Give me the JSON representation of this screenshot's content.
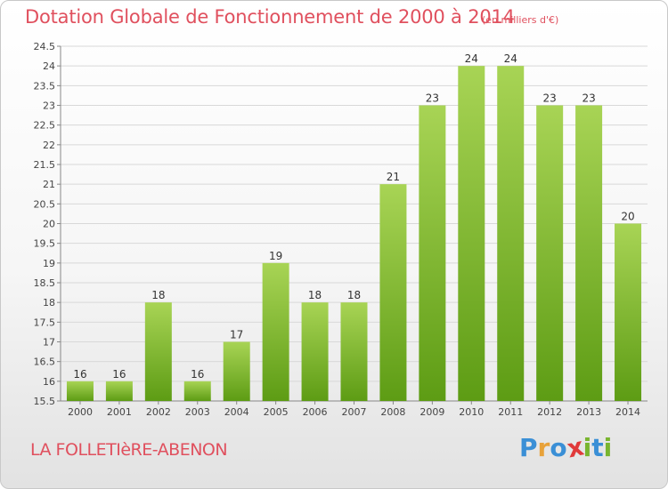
{
  "header": {
    "title": "Dotation Globale de Fonctionnement de 2000 à 2014",
    "units": "(en milliers d'€)"
  },
  "footer": {
    "commune": "LA FOLLETIèRE-ABENON",
    "logo": [
      "P",
      "r",
      "o",
      "x",
      "i",
      "t",
      "i"
    ]
  },
  "colors": {
    "title": "#e0505e",
    "bar_top": "#a8d455",
    "bar_bottom": "#5d9c14",
    "grid": "#d8d8d8",
    "logo": [
      "#3a8fd6",
      "#e8a23a",
      "#3a8fd6",
      "#e03a3a",
      "#79b52f",
      "#3a8fd6",
      "#79b52f"
    ]
  },
  "chart_data": {
    "type": "bar",
    "title": "Dotation Globale de Fonctionnement de 2000 à 2014",
    "xlabel": "",
    "ylabel": "",
    "categories": [
      "2000",
      "2001",
      "2002",
      "2003",
      "2004",
      "2005",
      "2006",
      "2007",
      "2008",
      "2009",
      "2010",
      "2011",
      "2012",
      "2013",
      "2014"
    ],
    "values": [
      16,
      16,
      18,
      16,
      17,
      19,
      18,
      18,
      21,
      23,
      24,
      24,
      23,
      23,
      20
    ],
    "ylim": [
      15.5,
      24.5
    ],
    "yticks": [
      "15.5",
      "16",
      "16.5",
      "17",
      "17.5",
      "18",
      "18.5",
      "19",
      "19.5",
      "20",
      "20.5",
      "21",
      "21.5",
      "22",
      "22.5",
      "23",
      "23.5",
      "24",
      "24.5"
    ],
    "grid": true
  }
}
